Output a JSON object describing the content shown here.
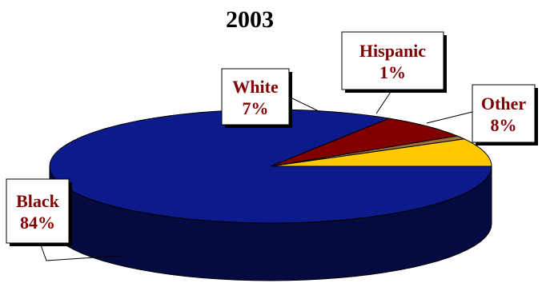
{
  "chart_data": {
    "type": "pie",
    "title": "2003",
    "slices": [
      {
        "label": "Black",
        "value": 84,
        "display": "84%",
        "color": "#0d1a8c",
        "side_color": "#050a40"
      },
      {
        "label": "White",
        "value": 7,
        "display": "7%",
        "color": "#800000",
        "side_color": "#400000"
      },
      {
        "label": "Hispanic",
        "value": 1,
        "display": "1%",
        "color": "#a0703c",
        "side_color": "#50381e"
      },
      {
        "label": "Other",
        "value": 8,
        "display": "8%",
        "color": "#ffc800",
        "side_color": "#806400"
      }
    ],
    "label_color": "#800000",
    "legend": "none",
    "three_d": true
  }
}
